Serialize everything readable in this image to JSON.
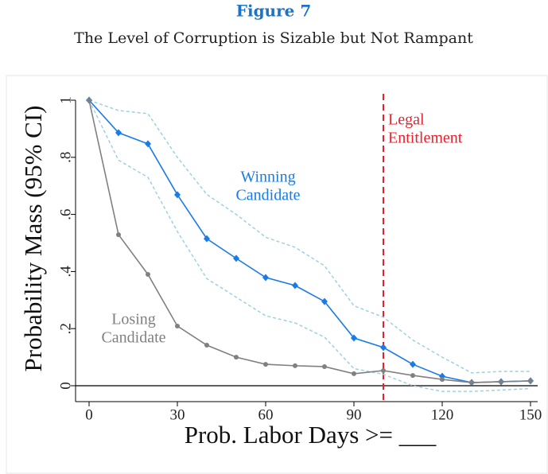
{
  "chart_data": {
    "type": "line",
    "title": "Figure 7",
    "subtitle": "The Level of Corruption is Sizable but Not Rampant",
    "xlabel": "Prob. Labor Days >= ___",
    "ylabel": "Probability Mass (95% CI)",
    "x": [
      0,
      10,
      20,
      30,
      40,
      50,
      60,
      70,
      80,
      90,
      100,
      110,
      120,
      130,
      140,
      150
    ],
    "series": [
      {
        "color": "#1a7be6",
        "marker": "diamond",
        "values": [
          1,
          0.886,
          0.847,
          0.669,
          0.515,
          0.446,
          0.379,
          0.351,
          0.295,
          0.167,
          0.134,
          0.075,
          0.033,
          0.011,
          0.014,
          0.017
        ],
        "ci_upper": [
          1,
          0.964,
          0.953,
          0.8,
          0.67,
          0.6,
          0.52,
          0.485,
          0.42,
          0.28,
          0.24,
          0.16,
          0.1,
          0.045,
          0.05,
          0.05
        ],
        "ci_lower": [
          1,
          0.79,
          0.73,
          0.54,
          0.375,
          0.31,
          0.245,
          0.22,
          0.17,
          0.06,
          0.04,
          0,
          -0.02,
          -0.02,
          -0.015,
          -0.01
        ],
        "ci_color": "#9fd0e0"
      },
      {
        "color": "#808080",
        "marker": "circle",
        "values": [
          1,
          0.529,
          0.39,
          0.209,
          0.142,
          0.1,
          0.075,
          0.07,
          0.067,
          0.042,
          0.053,
          0.036,
          0.022,
          0.011,
          0.014,
          0.017
        ]
      }
    ],
    "annotations": [
      {
        "lines": [
          "Winning",
          "Candidate"
        ],
        "color": "#1a7be6"
      },
      {
        "lines": [
          "Losing",
          "Candidate"
        ],
        "color": "#808080"
      },
      {
        "lines": [
          "Legal",
          "Entitlement"
        ],
        "color": "#e8202a"
      }
    ],
    "vline": {
      "x": 100,
      "color": "#e8202a"
    },
    "xlim": [
      0,
      150
    ],
    "xticks": [
      0,
      30,
      60,
      90,
      120,
      150
    ],
    "ylim": [
      0,
      1
    ],
    "yticks": [
      0,
      {
        "value": 0.2,
        "label": ".2"
      },
      {
        "value": 0.4,
        "label": ".4"
      },
      {
        "value": 0.6,
        "label": ".6"
      },
      {
        "value": 0.8,
        "label": ".8"
      },
      1
    ]
  }
}
